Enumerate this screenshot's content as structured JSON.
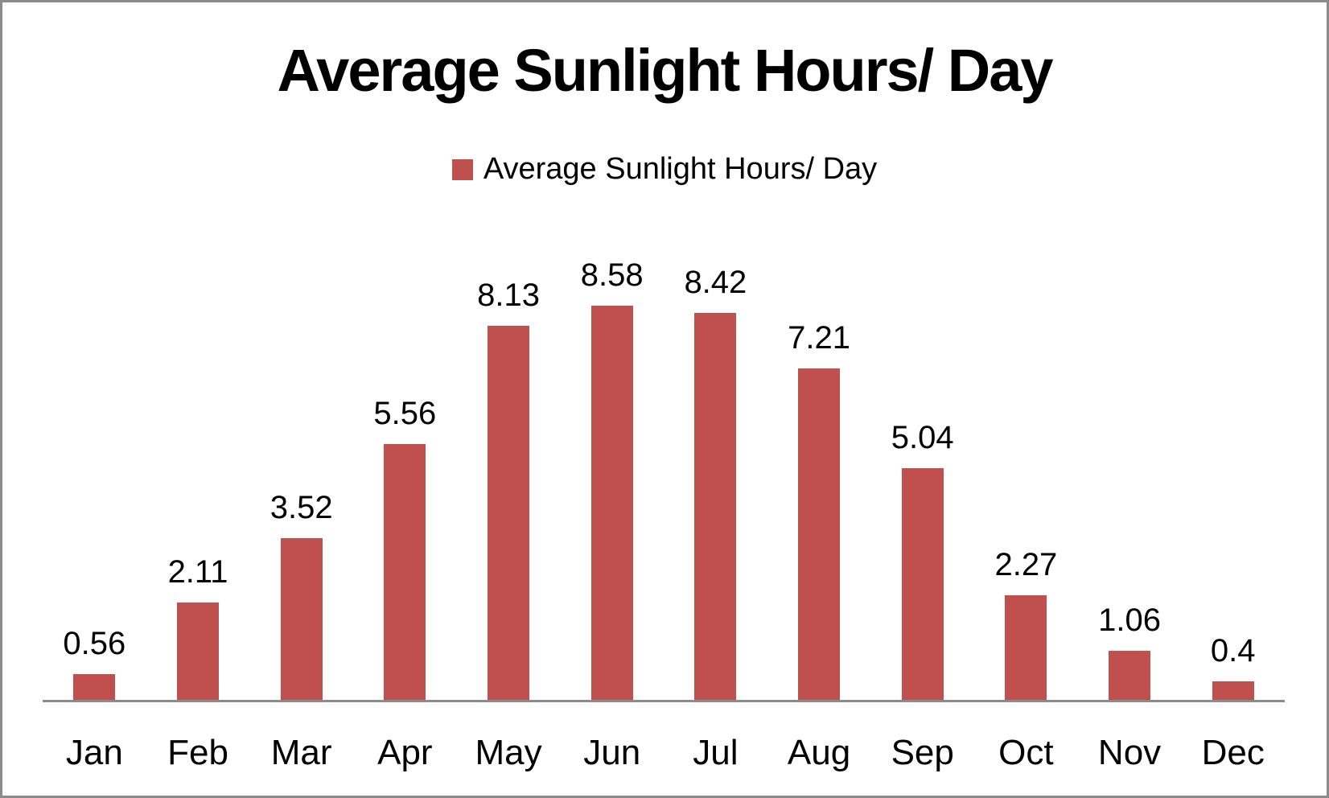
{
  "chart_data": {
    "type": "bar",
    "title": "Average Sunlight Hours/ Day",
    "legend_entries": [
      {
        "label": "Average Sunlight Hours/ Day",
        "color": "#C0504D"
      }
    ],
    "legend_position": "top-center",
    "categories": [
      "Jan",
      "Feb",
      "Mar",
      "Apr",
      "May",
      "Jun",
      "Jul",
      "Aug",
      "Sep",
      "Oct",
      "Nov",
      "Dec"
    ],
    "series": [
      {
        "name": "Average Sunlight Hours/ Day",
        "values": [
          0.56,
          2.11,
          3.52,
          5.56,
          8.13,
          8.58,
          8.42,
          7.21,
          5.04,
          2.27,
          1.06,
          0.4
        ],
        "data_labels": [
          "0.56",
          "2.11",
          "3.52",
          "5.56",
          "8.13",
          "8.58",
          "8.42",
          "7.21",
          "5.04",
          "2.27",
          "1.06",
          "0.4"
        ]
      }
    ],
    "xlabel": "",
    "ylabel": "",
    "ylim": [
      0,
      9.8
    ],
    "grid": false,
    "data_labels_shown": true,
    "colors": {
      "bar": "#C0504D",
      "axis_line": "#8C8C8C",
      "frame_border": "#8B8B8B",
      "text": "#000000",
      "background": "#FFFFFF"
    }
  }
}
